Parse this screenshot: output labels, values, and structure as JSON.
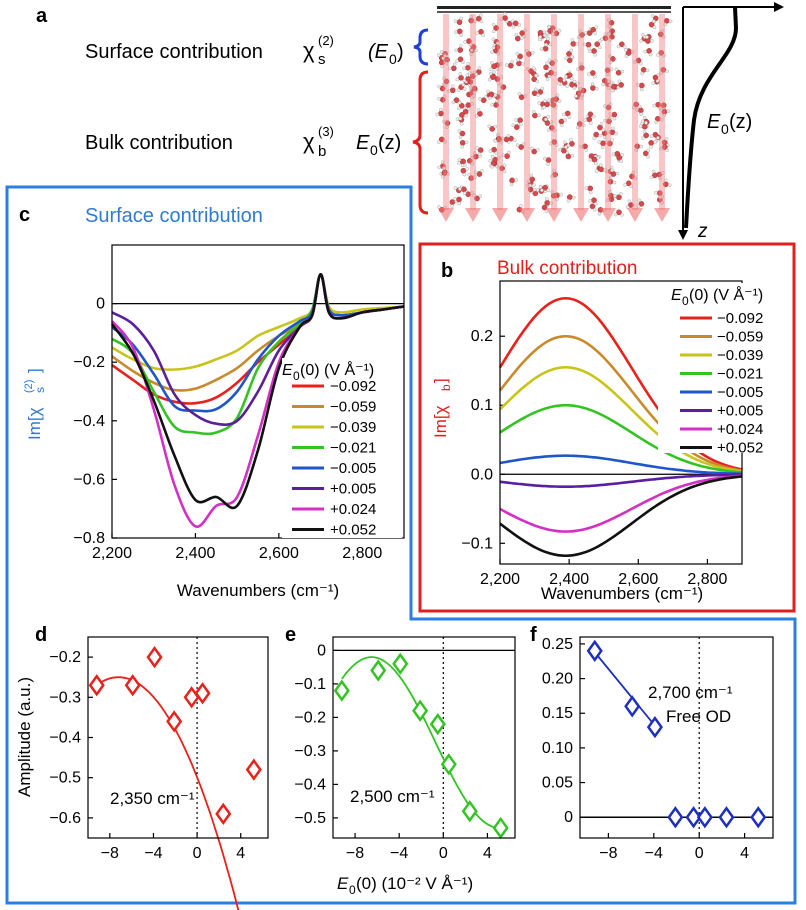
{
  "panel_a": {
    "label": "a",
    "surface_text": "Surface contribution",
    "chi_s": "χ",
    "chi_s_sub": "s",
    "chi_s_sup": "(2)",
    "e0_paren": "(E",
    "e0_paren_sub": "0",
    "e0_paren_close": ")",
    "bulk_text": "Bulk contribution",
    "chi_b": "χ",
    "chi_b_sub": "b",
    "chi_b_sup": "(3)",
    "e0z_left": "E",
    "e0z_left_sub": "0",
    "e0z_left_tail": "(z)",
    "e0z_right": "E",
    "e0z_right_sub": "0",
    "e0z_right_tail": "(z)",
    "z_label": "z"
  },
  "colors": {
    "surface_blue": "#2e7bd6",
    "bulk_red": "#e0201e",
    "frame_blue": "#2b7fe0",
    "frame_red": "#e02020",
    "series": [
      "#e8211b",
      "#c98a2b",
      "#c9c41c",
      "#33c424",
      "#1f56c9",
      "#5a1f9c",
      "#d42fc6",
      "#111111"
    ]
  },
  "chart_data": [
    {
      "id": "c",
      "label": "c",
      "type": "line",
      "title": "Surface contribution",
      "ylabel_main": "Im[χ",
      "ylabel_sub": "s",
      "ylabel_sup": "(2)",
      "ylabel_close": "]",
      "xlabel": "Wavenumbers (cm⁻¹)",
      "xlim": [
        2200,
        2900
      ],
      "ylim": [
        -0.8,
        0.2
      ],
      "xticks": [
        2200,
        2400,
        2600,
        2800
      ],
      "xtick_labels": [
        "2,200",
        "2,400",
        "2,600",
        "2,800"
      ],
      "yticks": [
        0,
        -0.2,
        -0.4,
        -0.6,
        -0.8
      ],
      "ytick_labels": [
        "0",
        "−0.2",
        "−0.4",
        "−0.6",
        "−0.8"
      ],
      "legend_title": "E0(0) (V Å⁻¹)",
      "legend_title_e": "E",
      "legend_title_sub": "0",
      "legend_title_rest": "(0) (V Å⁻¹)",
      "legend_position": "center-right",
      "x": [
        2200,
        2250,
        2300,
        2350,
        2400,
        2450,
        2500,
        2550,
        2600,
        2650,
        2680,
        2700,
        2720,
        2750,
        2800,
        2850,
        2900
      ],
      "series": [
        {
          "name": "−0.092",
          "values": [
            -0.21,
            -0.26,
            -0.31,
            -0.335,
            -0.34,
            -0.32,
            -0.27,
            -0.2,
            -0.14,
            -0.08,
            -0.03,
            0.1,
            -0.02,
            -0.04,
            -0.03,
            -0.02,
            -0.01
          ]
        },
        {
          "name": "−0.059",
          "values": [
            -0.18,
            -0.23,
            -0.27,
            -0.295,
            -0.29,
            -0.26,
            -0.22,
            -0.16,
            -0.11,
            -0.07,
            -0.03,
            0.1,
            -0.02,
            -0.04,
            -0.03,
            -0.02,
            -0.01
          ]
        },
        {
          "name": "−0.039",
          "values": [
            -0.15,
            -0.19,
            -0.22,
            -0.225,
            -0.215,
            -0.19,
            -0.16,
            -0.11,
            -0.08,
            -0.05,
            -0.02,
            0.1,
            -0.01,
            -0.03,
            -0.02,
            -0.015,
            -0.01
          ]
        },
        {
          "name": "−0.021",
          "values": [
            -0.12,
            -0.17,
            -0.3,
            -0.42,
            -0.44,
            -0.44,
            -0.39,
            -0.22,
            -0.13,
            -0.07,
            -0.02,
            0.1,
            -0.02,
            -0.04,
            -0.03,
            -0.02,
            -0.01
          ]
        },
        {
          "name": "−0.005",
          "values": [
            -0.08,
            -0.14,
            -0.24,
            -0.35,
            -0.365,
            -0.36,
            -0.3,
            -0.19,
            -0.11,
            -0.06,
            -0.03,
            0.1,
            -0.02,
            -0.04,
            -0.03,
            -0.02,
            -0.01
          ]
        },
        {
          "name": "+0.005",
          "values": [
            -0.03,
            -0.07,
            -0.16,
            -0.31,
            -0.38,
            -0.41,
            -0.4,
            -0.3,
            -0.16,
            -0.08,
            -0.04,
            0.1,
            -0.03,
            -0.05,
            -0.03,
            -0.02,
            -0.01
          ]
        },
        {
          "name": "+0.024",
          "values": [
            -0.06,
            -0.15,
            -0.36,
            -0.62,
            -0.76,
            -0.69,
            -0.66,
            -0.45,
            -0.2,
            -0.08,
            -0.04,
            0.1,
            -0.03,
            -0.05,
            -0.03,
            -0.02,
            -0.01
          ]
        },
        {
          "name": "+0.052",
          "values": [
            -0.07,
            -0.17,
            -0.33,
            -0.52,
            -0.67,
            -0.66,
            -0.69,
            -0.5,
            -0.22,
            -0.08,
            -0.04,
            0.1,
            -0.03,
            -0.05,
            -0.03,
            -0.02,
            -0.01
          ]
        }
      ]
    },
    {
      "id": "b",
      "label": "b",
      "type": "line",
      "title": "Bulk contribution",
      "ylabel_main": "Im[χ",
      "ylabel_sub": "b",
      "ylabel_close": "]",
      "xlabel": "Wavenumbers (cm⁻¹)",
      "xlim": [
        2200,
        2900
      ],
      "ylim": [
        -0.13,
        0.28
      ],
      "xticks": [
        2200,
        2400,
        2600,
        2800
      ],
      "xtick_labels": [
        "2,200",
        "2,400",
        "2,600",
        "2,800"
      ],
      "yticks": [
        0.2,
        0.1,
        0,
        -0.1
      ],
      "ytick_labels": [
        "0.2",
        "0.1",
        "0.0",
        "−0.1"
      ],
      "legend_title_e": "E",
      "legend_title_sub": "0",
      "legend_title_rest": "(0) (V Å⁻¹)",
      "legend_position": "top-right",
      "amplitudes": [
        0.255,
        0.2,
        0.155,
        0.1,
        0.027,
        -0.018,
        -0.083,
        -0.118
      ],
      "center": 2390,
      "width": 190,
      "series_names": [
        "−0.092",
        "−0.059",
        "−0.039",
        "−0.021",
        "−0.005",
        "+0.005",
        "+0.024",
        "+0.052"
      ]
    },
    {
      "id": "d",
      "label": "d",
      "type": "scatter",
      "ylabel": "Amplitude (a.u.)",
      "annotation": "2,350 cm⁻¹",
      "xlim": [
        -10,
        6.5
      ],
      "ylim": [
        -0.65,
        -0.15
      ],
      "xticks": [
        -8,
        -4,
        0,
        4
      ],
      "xtick_labels": [
        "−8",
        "−4",
        "0",
        "4"
      ],
      "yticks": [
        -0.2,
        -0.3,
        -0.4,
        -0.5,
        -0.6
      ],
      "ytick_labels": [
        "−0.2",
        "−0.3",
        "−0.4",
        "−0.5",
        "−0.6"
      ],
      "x": [
        -9.2,
        -5.9,
        -3.9,
        -2.1,
        -0.5,
        0.5,
        2.4,
        5.2
      ],
      "y": [
        -0.27,
        -0.27,
        -0.2,
        -0.36,
        -0.3,
        -0.29,
        -0.59,
        -0.48
      ],
      "fit": {
        "a": -0.0048,
        "h": -7.2,
        "k": -0.25,
        "x0": -9.2,
        "x1": 5.2
      },
      "color": "#e8211b"
    },
    {
      "id": "e",
      "label": "e",
      "type": "scatter",
      "xlabel_e": "E",
      "xlabel_sub": "0",
      "xlabel_rest": "(0) (10⁻² V Å⁻¹)",
      "annotation": "2,500 cm⁻¹",
      "xlim": [
        -10,
        6.5
      ],
      "ylim": [
        -0.56,
        0.04
      ],
      "xticks": [
        -8,
        -4,
        0,
        4
      ],
      "xtick_labels": [
        "−8",
        "−4",
        "0",
        "4"
      ],
      "yticks": [
        0,
        -0.1,
        -0.2,
        -0.3,
        -0.4,
        -0.5
      ],
      "ytick_labels": [
        "0",
        "−0.1",
        "−0.2",
        "−0.3",
        "−0.4",
        "−0.5"
      ],
      "x": [
        -9.2,
        -5.9,
        -3.9,
        -2.1,
        -0.5,
        0.5,
        2.4,
        5.2
      ],
      "y": [
        -0.12,
        -0.06,
        -0.04,
        -0.18,
        -0.22,
        -0.34,
        -0.48,
        -0.53
      ],
      "fit": {
        "k": -0.275,
        "a": 0.255,
        "w": 3.0,
        "x0": -9.2,
        "x1": 5.2
      },
      "color": "#33c424"
    },
    {
      "id": "f",
      "label": "f",
      "type": "scatter",
      "annotation_line1": "2,700 cm⁻¹",
      "annotation_line2": "Free OD",
      "xlim": [
        -10.5,
        6.5
      ],
      "ylim": [
        -0.03,
        0.26
      ],
      "xticks": [
        -8,
        -4,
        0,
        4
      ],
      "xtick_labels": [
        "−8",
        "−4",
        "0",
        "4"
      ],
      "yticks": [
        0.25,
        0.2,
        0.15,
        0.1,
        0.05,
        0
      ],
      "ytick_labels": [
        "0.25",
        "0.20",
        "0.15",
        "0.10",
        "0.05",
        "0"
      ],
      "x": [
        -9.2,
        -5.9,
        -3.9,
        -2.1,
        -0.5,
        0.5,
        2.4,
        5.2
      ],
      "y": [
        0.24,
        0.16,
        0.13,
        0,
        0,
        0,
        0,
        0
      ],
      "fit": {
        "x0": -9.2,
        "y0": 0.238,
        "x1": -3.9,
        "y1": 0.132
      },
      "color": "#1d2fc0"
    }
  ]
}
